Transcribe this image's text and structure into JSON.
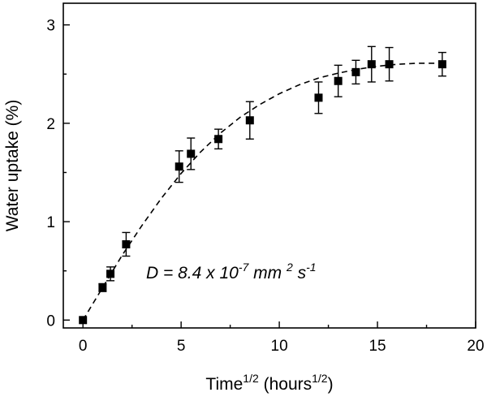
{
  "chart_data": {
    "type": "scatter",
    "xlabel": "Time",
    "xlabel_sup": "1/2",
    "xlabel_unit_pre": " (hours",
    "xlabel_unit_sup": "1/2",
    "xlabel_unit_post": ")",
    "ylabel": "Water uptake (%)",
    "xlim": [
      -1,
      20
    ],
    "ylim": [
      -0.08,
      3.22
    ],
    "xticks": [
      0,
      5,
      10,
      15,
      20
    ],
    "yticks": [
      0,
      1,
      2,
      3
    ],
    "grid": false,
    "annotation": {
      "prefix": "D = 8.4 x 10",
      "exp1": "-7",
      "mid": " mm ",
      "exp2": "2",
      "s": " s",
      "exp3": "-1"
    },
    "series": [
      {
        "marker": "square",
        "color": "#000000",
        "points": [
          {
            "x": 0.0,
            "y": 0.0,
            "err": 0.0
          },
          {
            "x": 1.0,
            "y": 0.33,
            "err": 0.04
          },
          {
            "x": 1.4,
            "y": 0.47,
            "err": 0.07
          },
          {
            "x": 2.2,
            "y": 0.77,
            "err": 0.12
          },
          {
            "x": 4.9,
            "y": 1.56,
            "err": 0.16
          },
          {
            "x": 5.5,
            "y": 1.69,
            "err": 0.16
          },
          {
            "x": 6.9,
            "y": 1.84,
            "err": 0.1
          },
          {
            "x": 8.5,
            "y": 2.03,
            "err": 0.19
          },
          {
            "x": 12.0,
            "y": 2.26,
            "err": 0.16
          },
          {
            "x": 13.0,
            "y": 2.43,
            "err": 0.16
          },
          {
            "x": 13.9,
            "y": 2.52,
            "err": 0.12
          },
          {
            "x": 14.7,
            "y": 2.6,
            "err": 0.18
          },
          {
            "x": 15.6,
            "y": 2.6,
            "err": 0.17
          },
          {
            "x": 18.3,
            "y": 2.6,
            "err": 0.12
          }
        ]
      }
    ],
    "fit": {
      "style": "dashed",
      "points": [
        [
          0,
          0
        ],
        [
          1,
          0.33
        ],
        [
          2,
          0.66
        ],
        [
          3,
          0.96
        ],
        [
          4,
          1.24
        ],
        [
          5,
          1.49
        ],
        [
          6,
          1.71
        ],
        [
          7,
          1.9
        ],
        [
          8,
          2.06
        ],
        [
          9,
          2.19
        ],
        [
          10,
          2.3
        ],
        [
          11,
          2.39
        ],
        [
          12,
          2.46
        ],
        [
          13,
          2.51
        ],
        [
          14,
          2.55
        ],
        [
          15,
          2.58
        ],
        [
          16,
          2.6
        ],
        [
          17,
          2.61
        ],
        [
          18,
          2.61
        ],
        [
          18.3,
          2.61
        ]
      ]
    }
  }
}
